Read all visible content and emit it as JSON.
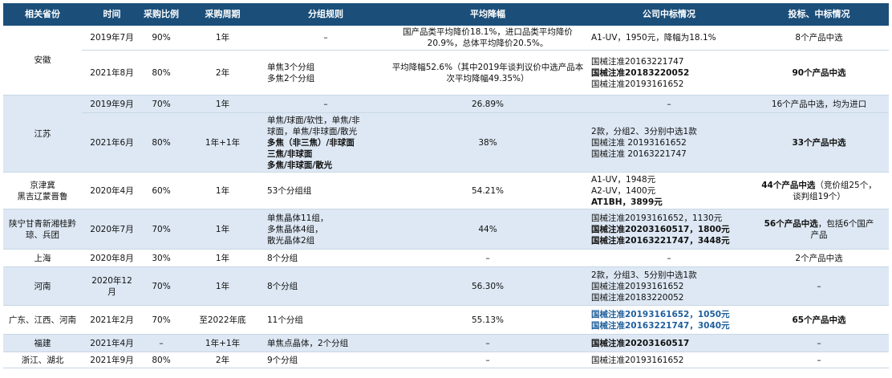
{
  "headers": [
    "相关省份",
    "时间",
    "采购比例",
    "采购周期",
    "分组规则",
    "平均降幅",
    "公司中标情况",
    "投标、中标情况"
  ],
  "rows": {
    "ah1": {
      "province": "安徽",
      "time": "2019年7月",
      "ratio": "90%",
      "cycle": "1年",
      "rule": "–",
      "drop": [
        "国产品类平均降价18.1%，进口品类平均降价",
        "20.9%，总体平均降价20.5%。"
      ],
      "company": [
        "A1-UV，1950元，降幅为18.1%"
      ],
      "bid": "8个产品中选"
    },
    "ah2": {
      "time": "2021年8月",
      "ratio": "80%",
      "cycle": "2年",
      "rule": [
        "单焦3个分组",
        "多焦2个分组"
      ],
      "drop": [
        "平均降幅52.6%（其中2019年谈判议价中选产品本",
        "次平均降幅49.35%）"
      ],
      "company": [
        "国械注准20163221747",
        "国械注准20183220052",
        "国械注准20193161652"
      ],
      "bid": "90个产品中选"
    },
    "js1": {
      "province": "江苏",
      "time": "2019年9月",
      "ratio": "70%",
      "cycle": "1年",
      "rule": "–",
      "drop": "26.89%",
      "company": "–",
      "bid": "16个产品中选，均为进口"
    },
    "js2": {
      "time": "2021年6月",
      "ratio": "80%",
      "cycle": "1年+1年",
      "rule": [
        "单焦/球面/软性，单焦/非",
        "球面，单焦/非球面/散光",
        "多焦（非三焦）/非球面",
        "三焦/非球面",
        "多焦/非球面/散光"
      ],
      "drop": "38%",
      "company": [
        "2款，分组2、3分别中选1款",
        "国械注准 20193161652",
        "国械注准 20163221747"
      ],
      "bid": "33个产品中选"
    },
    "jjj": {
      "province": [
        "京津冀",
        "黑吉辽蒙晋鲁"
      ],
      "time": "2020年4月",
      "ratio": "60%",
      "cycle": "1年",
      "rule": "53个分组组",
      "drop": "54.21%",
      "company": [
        "A1-UV，1948元",
        "A2-UV，1400元",
        "AT1BH，3899元"
      ],
      "bid_bold": "44个产品中选",
      "bid_rest": "（竞价组25个，",
      "bid_line2": "谈判组19个）"
    },
    "sn": {
      "province": [
        "陕宁甘青新湘桂黔",
        "琼、兵团"
      ],
      "time": "2020年7月",
      "ratio": "70%",
      "cycle": "1年",
      "rule": [
        "单焦晶体11组，",
        "多焦晶体4组，",
        "散光晶体2组"
      ],
      "drop": "44%",
      "company": [
        "国械注准20193161652，1130元",
        "国械注准20203160517，1800元",
        "国械注准20163221747，3448元"
      ],
      "bid_bold": "56个产品中选",
      "bid_rest": "，包括6个国产",
      "bid_line2": "产品"
    },
    "sh": {
      "province": "上海",
      "time": "2020年8月",
      "ratio": "30%",
      "cycle": "1年",
      "rule": "8个分组",
      "drop": "–",
      "company": "–",
      "bid": "2个产品中选"
    },
    "hn": {
      "province": "河南",
      "time": [
        "2020年12",
        "月"
      ],
      "ratio": "70%",
      "cycle": "1年",
      "rule": "8个分组",
      "drop": "56.30%",
      "company": [
        "2款，分组3、5分别中选1款",
        "国械注准20193161652",
        "国械注准20183220052"
      ],
      "bid": "–"
    },
    "gd": {
      "province": "广东、江西、河南",
      "time": "2021年2月",
      "ratio": "70%",
      "cycle": "至2022年底",
      "rule": "11个分组",
      "drop": "55.13%",
      "company": [
        "国械注准20193161652，1050元",
        "国械注准20163221747，3040元"
      ],
      "bid": "65个产品中选"
    },
    "fj": {
      "province": "福建",
      "time": "2021年4月",
      "ratio": "–",
      "cycle": "1年+1年",
      "rule": "单焦点晶体，2个分组",
      "drop": "–",
      "company": "国械注准20203160517",
      "bid": "–"
    },
    "zj": {
      "province": "浙江、湖北",
      "time": "2021年9月",
      "ratio": "80%",
      "cycle": "2年",
      "rule": "9个分组",
      "drop": "–",
      "company": "国械注准20193161652",
      "bid": "–"
    }
  },
  "colors": {
    "header_bg": "#1b4f7a",
    "band_bg": "#dde8f4",
    "link_blue": "#1f5f9c"
  }
}
